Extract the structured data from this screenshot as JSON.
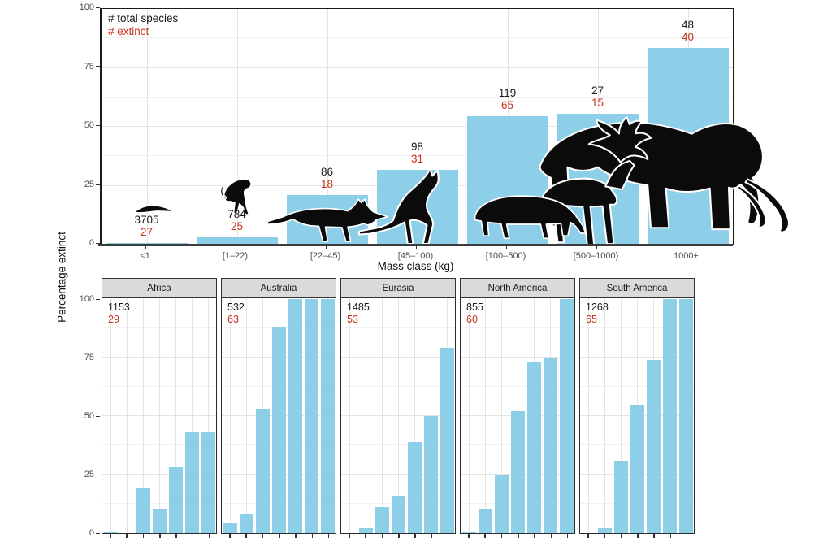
{
  "colors": {
    "bar": "#8DCEE9",
    "extinct_red": "#C8321E",
    "strip_bg": "#DADADA",
    "grid_major": "#E4E4E4",
    "grid_minor": "#F2F2F2",
    "axis_text": "#4d4d4d"
  },
  "legend": {
    "total": "# total species",
    "extinct": "# extinct"
  },
  "chart_data": {
    "type": "bar",
    "title": "",
    "ylabel": "Percentage extinct",
    "xlabel": "Mass class (kg)",
    "categories": [
      "<1",
      "[1–22)",
      "[22–45)",
      "[45–100)",
      "[100–500)",
      "[500–1000)",
      "1000+"
    ],
    "ylim": [
      0,
      100
    ],
    "yticks": [
      0,
      25,
      50,
      75,
      100
    ],
    "grid": true,
    "legend_position": "top-left-inside",
    "global": {
      "total_species": [
        3705,
        784,
        86,
        98,
        119,
        27,
        48
      ],
      "extinct": [
        27,
        25,
        18,
        31,
        65,
        15,
        40
      ],
      "percent_extinct": [
        0.7,
        3.2,
        20.9,
        31.6,
        54.6,
        55.6,
        83.3
      ],
      "silhouettes": [
        "shrew",
        "monkey",
        "thylacine",
        "kangaroo",
        "tapir",
        "giant-deer",
        "mammoth"
      ]
    },
    "facets": [
      {
        "name": "Africa",
        "total_species": 1153,
        "extinct": 29,
        "percent_extinct": [
          0.5,
          0,
          19,
          10,
          28,
          43,
          43
        ]
      },
      {
        "name": "Australia",
        "total_species": 532,
        "extinct": 63,
        "percent_extinct": [
          4,
          8,
          53,
          88,
          100,
          100,
          100
        ]
      },
      {
        "name": "Eurasia",
        "total_species": 1485,
        "extinct": 53,
        "percent_extinct": [
          0,
          2,
          11,
          16,
          39,
          50,
          79
        ]
      },
      {
        "name": "North America",
        "total_species": 855,
        "extinct": 60,
        "percent_extinct": [
          0.5,
          10,
          25,
          52,
          73,
          75,
          100
        ]
      },
      {
        "name": "South America",
        "total_species": 1268,
        "extinct": 65,
        "percent_extinct": [
          0,
          2,
          31,
          55,
          74,
          100,
          100
        ]
      }
    ]
  }
}
